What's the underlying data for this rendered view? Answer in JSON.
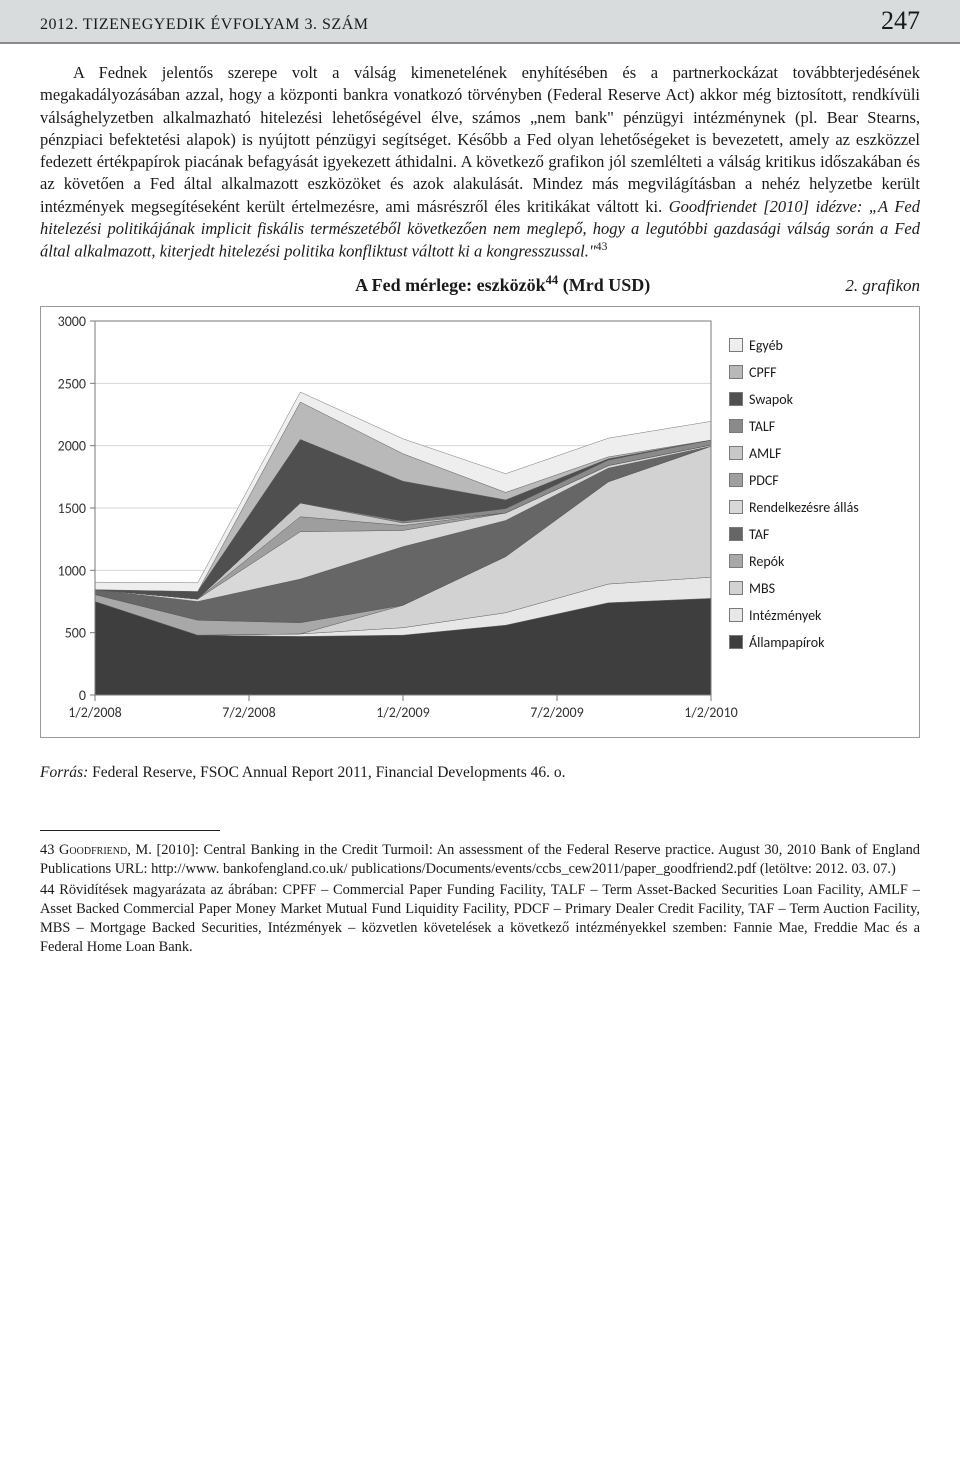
{
  "header": {
    "issue": "2012. TIZENEGYEDIK ÉVFOLYAM 3. SZÁM",
    "page": "247"
  },
  "paragraph": {
    "p1": "A Fednek jelentős szerepe volt a válság kimenetelének enyhítésében és a partnerkockázat továbbterjedésének megakadályozásában azzal, hogy a központi bankra vonatkozó törvényben (Federal Reserve Act) akkor még biztosított, rendkívüli válsághelyzetben alkalmazható hitelezési lehetőségével élve, számos „nem bank\" pénzügyi intézménynek (pl. Bear Stearns, pénzpiaci befektetési alapok) is nyújtott pénzügyi segítséget. Később a Fed olyan lehetőségeket is bevezetett, amely az eszközzel fedezett értékpapírok piacának befagyását igyekezett áthidalni. A következő grafikon jól szemlélteti a válság kritikus időszakában és az követően a Fed által alkalmazott eszközöket és azok alakulását. Mindez más megvilágításban a nehéz helyzetbe került intézmények megsegítéseként került értelmezésre, ami másrészről éles kritikákat váltott ki. ",
    "quote": "Goodfriendet [2010] idézve: „A Fed hitelezési politikájának implicit fiskális természetéből következően nem meglepő, hogy a legutóbbi gazdasági válság során a Fed által alkalmazott, kiterjedt hitelezési politika konfliktust váltott ki a kongresszussal.\"",
    "sup43": "43"
  },
  "chart": {
    "title_pre": "A Fed mérlege: eszközök",
    "title_sup": "44",
    "title_post": " (Mrd USD)",
    "grafikon_label": "2. grafikon",
    "type": "stacked-area",
    "x_categories": [
      "1/2/2008",
      "7/2/2008",
      "1/2/2009",
      "7/2/2009",
      "1/2/2010"
    ],
    "ylim": [
      0,
      3000
    ],
    "ytick_step": 500,
    "grid_color": "#d7d7d7",
    "axis_color": "#7a7a7a",
    "background": "#ffffff",
    "plot_bg": "#ffffff",
    "tick_font_size": 14,
    "series": [
      {
        "name": "Állampapírok",
        "color": "#3e3e3e",
        "values": [
          750,
          480,
          470,
          480,
          560,
          740,
          775
        ]
      },
      {
        "name": "Intézmények",
        "color": "#e7e7e7",
        "values": [
          0,
          0,
          20,
          60,
          100,
          150,
          170
        ]
      },
      {
        "name": "MBS",
        "color": "#d2d2d2",
        "values": [
          0,
          0,
          0,
          180,
          450,
          820,
          1050
        ]
      },
      {
        "name": "Repók",
        "color": "#a8a8a8",
        "values": [
          55,
          120,
          90,
          0,
          0,
          0,
          0
        ]
      },
      {
        "name": "TAF",
        "color": "#666666",
        "values": [
          40,
          150,
          350,
          470,
          290,
          110,
          0
        ]
      },
      {
        "name": "Rendelkezésre állás",
        "color": "#d8d8d8",
        "values": [
          0,
          20,
          380,
          130,
          60,
          20,
          10
        ]
      },
      {
        "name": "PDCF",
        "color": "#9e9e9e",
        "values": [
          0,
          0,
          120,
          40,
          0,
          0,
          0
        ]
      },
      {
        "name": "AMLF",
        "color": "#c8c8c8",
        "values": [
          0,
          0,
          110,
          20,
          0,
          0,
          0
        ]
      },
      {
        "name": "TALF",
        "color": "#8a8a8a",
        "values": [
          0,
          0,
          0,
          15,
          35,
          45,
          40
        ]
      },
      {
        "name": "Swapok",
        "color": "#4f4f4f",
        "values": [
          0,
          60,
          510,
          320,
          70,
          10,
          0
        ]
      },
      {
        "name": "CPFF",
        "color": "#b9b9b9",
        "values": [
          0,
          0,
          300,
          220,
          60,
          15,
          0
        ]
      },
      {
        "name": "Egyéb",
        "color": "#eeeeee",
        "values": [
          60,
          70,
          80,
          120,
          150,
          150,
          150
        ]
      }
    ]
  },
  "source": {
    "prefix": "Forrás: ",
    "text": "Federal Reserve, FSOC Annual Report 2011, Financial Developments 46. o."
  },
  "footnotes": {
    "fn43_num": "43",
    "fn43_author": "Goodfriend, M.",
    "fn43_rest": " [2010]: Central Banking in the Credit Turmoil: An assessment of the Federal Reserve practice. August 30, 2010 Bank of England Publications URL: http://www. bankofengland.co.uk/ publications/Documents/events/ccbs_cew2011/paper_goodfriend2.pdf (letöltve: 2012. 03. 07.)",
    "fn44_num": "44",
    "fn44_text": "Rövidítések magyarázata az ábrában: CPFF – Commercial Paper Funding Facility, TALF – Term Asset-Backed Securities Loan Facility, AMLF – Asset Backed Commercial Paper Money Market Mutual Fund Liquidity Facility, PDCF – Primary Dealer Credit Facility, TAF – Term Auction Facility, MBS – Mortgage Backed Securities, Intézmények – közvetlen követelések a következő intézményekkel szemben: Fannie Mae, Freddie Mac és a Federal Home Loan Bank."
  }
}
